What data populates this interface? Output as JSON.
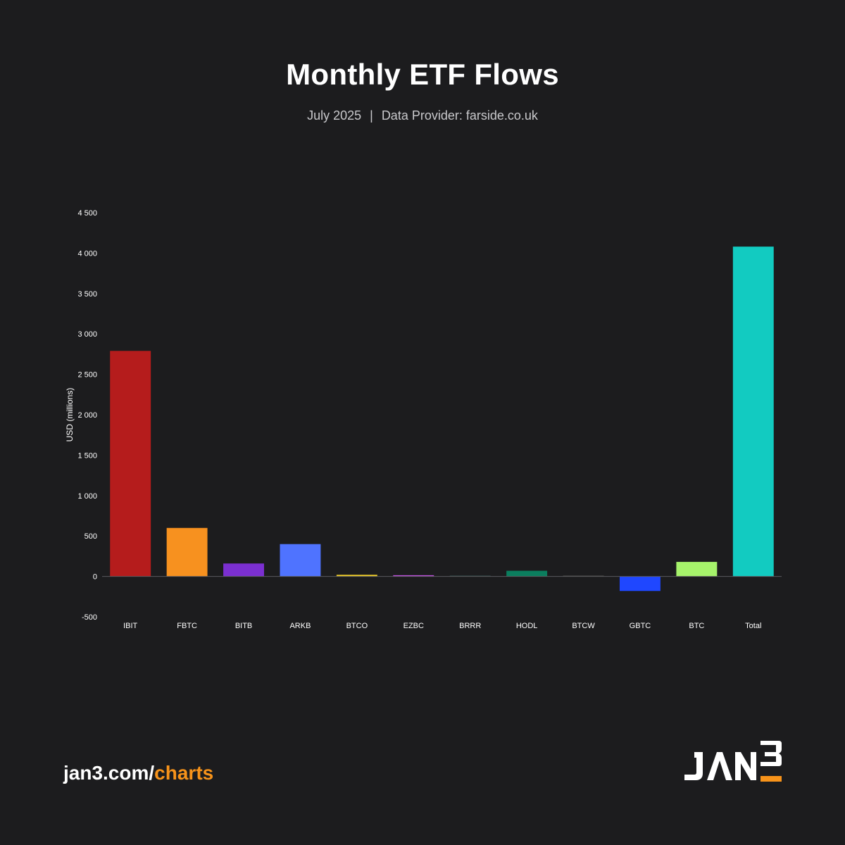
{
  "header": {
    "title": "Monthly ETF Flows",
    "period": "July 2025",
    "separator": "|",
    "provider": "Data Provider: farside.co.uk"
  },
  "footer": {
    "url_prefix": "jan3.com/",
    "url_suffix": "charts",
    "logo_text": "JAN3"
  },
  "colors": {
    "background": "#1c1c1e",
    "accent": "#f7931a"
  },
  "chart_data": {
    "type": "bar",
    "title": "Monthly ETF Flows",
    "ylabel": "USD (millions)",
    "xlabel": "",
    "ylim": [
      -500,
      4500
    ],
    "yticks": [
      -500,
      0,
      500,
      1000,
      1500,
      2000,
      2500,
      3000,
      3500,
      4000,
      4500
    ],
    "ytick_labels": [
      "-500",
      "0",
      "500",
      "1 000",
      "1 500",
      "2 000",
      "2 500",
      "3 000",
      "3 500",
      "4 000",
      "4 500"
    ],
    "grid": false,
    "categories": [
      "IBIT",
      "FBTC",
      "BITB",
      "ARKB",
      "BTCO",
      "EZBC",
      "BRRR",
      "HODL",
      "BTCW",
      "GBTC",
      "BTC",
      "Total"
    ],
    "values": [
      2790,
      600,
      160,
      400,
      20,
      15,
      3,
      70,
      1,
      -180,
      180,
      4080
    ],
    "bar_colors": [
      "#b51c1c",
      "#f7911f",
      "#7b2fd1",
      "#4f73ff",
      "#f2cf27",
      "#c04fe0",
      "#2a3a3a",
      "#0b7e5e",
      "#3a3a3a",
      "#1f47ff",
      "#a6f36b",
      "#12cbc1"
    ]
  }
}
